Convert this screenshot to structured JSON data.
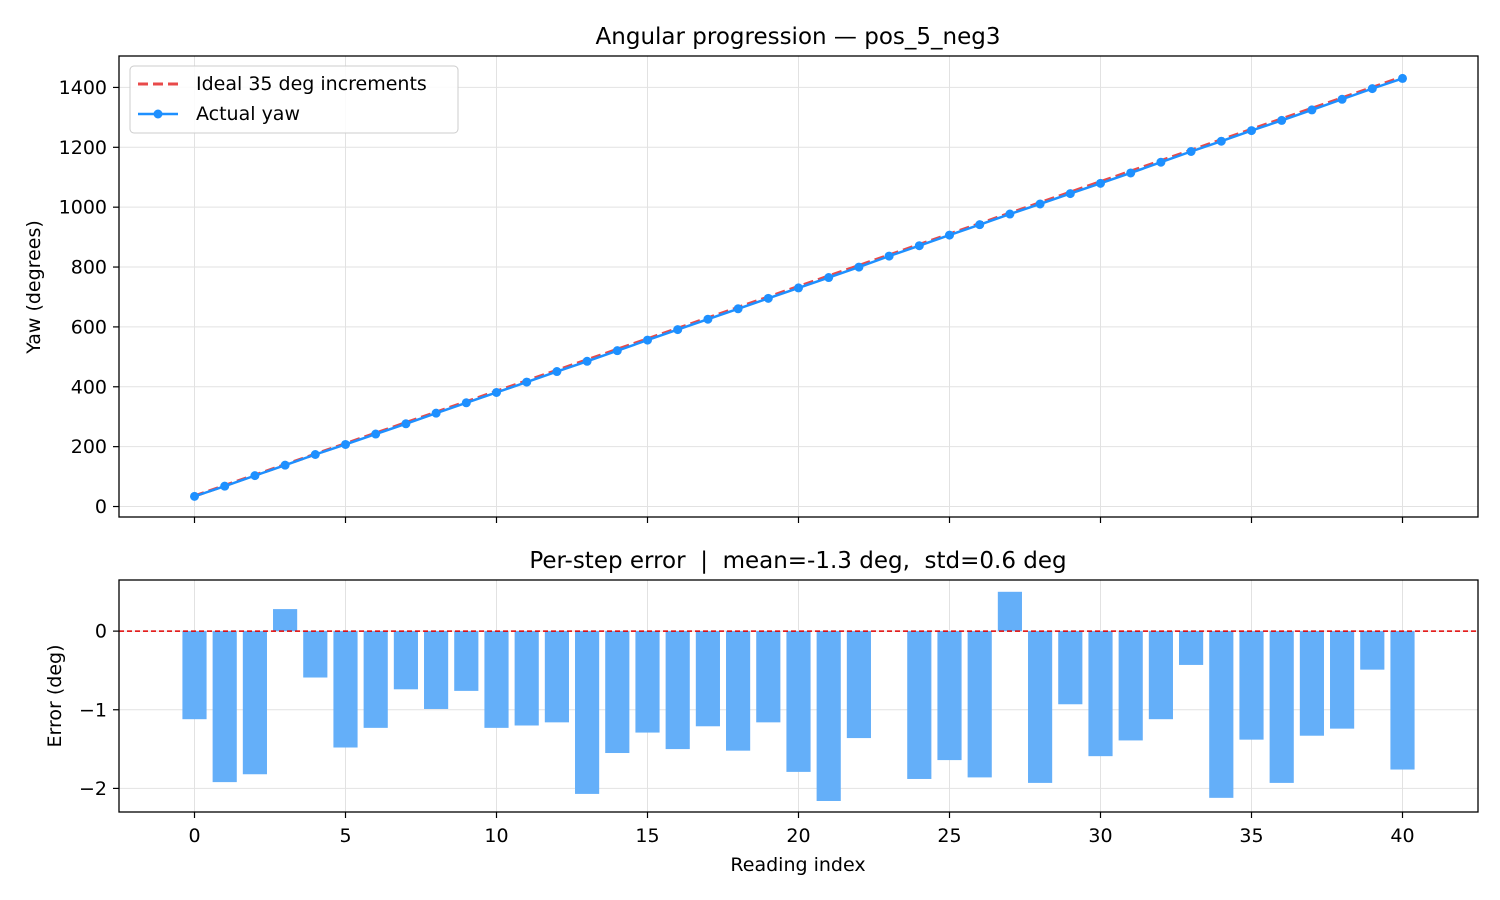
{
  "chart_data": [
    {
      "type": "line",
      "title": "Angular progression — pos_5_neg3",
      "xlabel": "",
      "ylabel": "Yaw (degrees)",
      "xlim": [
        -2.5,
        42.5
      ],
      "ylim": [
        -35,
        1505
      ],
      "yticks": [
        0,
        200,
        400,
        600,
        800,
        1000,
        1200,
        1400
      ],
      "xticks": [
        0,
        5,
        10,
        15,
        20,
        25,
        30,
        35,
        40
      ],
      "grid": true,
      "legend": "top-left",
      "series": [
        {
          "name": "Ideal 35 deg increments",
          "style": "dashed",
          "color": "#e84a4a",
          "x": [
            0,
            40
          ],
          "y": [
            35,
            1435
          ]
        },
        {
          "name": "Actual yaw",
          "style": "line-marker",
          "color": "#1e90ff",
          "x": [
            0,
            1,
            2,
            3,
            4,
            5,
            6,
            7,
            8,
            9,
            10,
            11,
            12,
            13,
            14,
            15,
            16,
            17,
            18,
            19,
            20,
            21,
            22,
            23,
            24,
            25,
            26,
            27,
            28,
            29,
            30,
            31,
            32,
            33,
            34,
            35,
            36,
            37,
            38,
            39,
            40
          ],
          "y": [
            33.9,
            68.1,
            103.2,
            138.2,
            173.8,
            207.3,
            242.1,
            276.4,
            311.8,
            346.5,
            381.0,
            415.7,
            451.0,
            485.1,
            520.6,
            555.9,
            591.1,
            625.7,
            660.6,
            695.5,
            730.3,
            765.0,
            799.9,
            836.5,
            871.3,
            906.8,
            941.5,
            977.0,
            1010.8,
            1045.4,
            1079.7,
            1114.3,
            1150.1,
            1186.0,
            1220.4,
            1255.9,
            1289.8,
            1325.0,
            1360.5,
            1396.0,
            1430.2
          ]
        }
      ]
    },
    {
      "type": "bar",
      "title": "Per-step error  |  mean=-1.3 deg,  std=0.6 deg",
      "xlabel": "Reading index",
      "ylabel": "Error (deg)",
      "xlim": [
        -2.5,
        42.5
      ],
      "ylim": [
        -2.3,
        0.65
      ],
      "yticks": [
        -2,
        -1,
        0
      ],
      "xticks": [
        0,
        5,
        10,
        15,
        20,
        25,
        30,
        35,
        40
      ],
      "grid": true,
      "reference_line": {
        "y": 0,
        "color": "#e00000",
        "style": "dashed"
      },
      "color": "#64aff9",
      "x": [
        0,
        1,
        2,
        3,
        4,
        5,
        6,
        7,
        8,
        9,
        10,
        11,
        12,
        13,
        14,
        15,
        16,
        17,
        18,
        19,
        20,
        21,
        22,
        23,
        24,
        25,
        26,
        27,
        28,
        29,
        30,
        31,
        32,
        33,
        34,
        35,
        36,
        37,
        38,
        39,
        40
      ],
      "values": [
        -1.12,
        -1.92,
        -1.82,
        0.28,
        -0.59,
        -1.48,
        -1.23,
        -0.74,
        -0.99,
        -0.76,
        -1.23,
        -1.2,
        -1.16,
        -2.07,
        -1.55,
        -1.29,
        -1.5,
        -1.21,
        -1.52,
        -1.16,
        -1.79,
        -2.16,
        -1.36,
        0.0,
        -1.88,
        -1.64,
        -1.86,
        0.5,
        -1.93,
        -0.93,
        -1.59,
        -1.39,
        -1.12,
        -0.43,
        -2.12,
        -1.38,
        -1.93,
        -1.33,
        -1.24,
        -0.49,
        -1.76
      ]
    }
  ]
}
